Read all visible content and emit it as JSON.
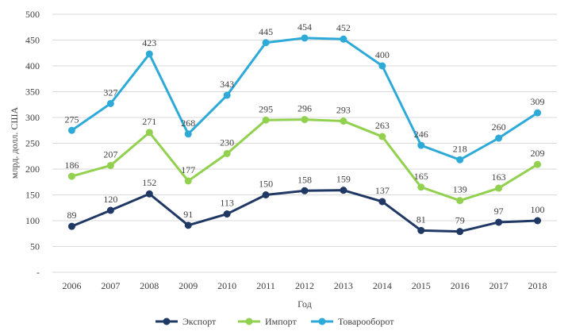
{
  "chart_data": {
    "type": "line",
    "title": "",
    "xlabel": "Год",
    "ylabel": "млрд. долл. США",
    "ylim": [
      0,
      500
    ],
    "ytick_labels": [
      "-",
      "50",
      "100",
      "150",
      "200",
      "250",
      "300",
      "350",
      "400",
      "450",
      "500"
    ],
    "categories": [
      "2006",
      "2007",
      "2008",
      "2009",
      "2010",
      "2011",
      "2012",
      "2013",
      "2014",
      "2015",
      "2016",
      "2017",
      "2018"
    ],
    "grid": true,
    "legend_position": "bottom",
    "series": [
      {
        "name": "Экспорт",
        "color": "#203864",
        "values": [
          89,
          120,
          152,
          91,
          113,
          150,
          158,
          159,
          137,
          81,
          79,
          97,
          100
        ]
      },
      {
        "name": "Импорт",
        "color": "#92d050",
        "values": [
          186,
          207,
          271,
          177,
          230,
          295,
          296,
          293,
          263,
          165,
          139,
          163,
          209
        ]
      },
      {
        "name": "Товарооборот",
        "color": "#2eaad8",
        "values": [
          275,
          327,
          423,
          268,
          343,
          445,
          454,
          452,
          400,
          246,
          218,
          260,
          309
        ]
      }
    ]
  }
}
